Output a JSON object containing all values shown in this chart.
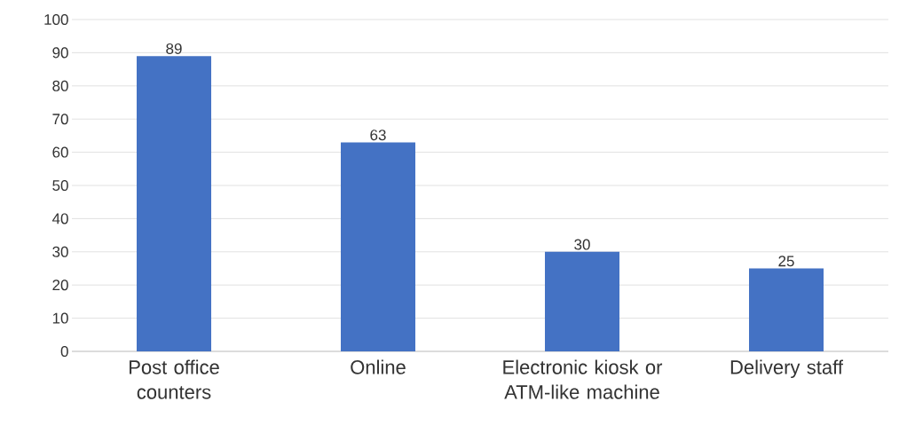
{
  "chart_data": {
    "type": "bar",
    "categories": [
      "Post office counters",
      "Online",
      "Electronic kiosk or ATM-like machine",
      "Delivery staff"
    ],
    "values": [
      89,
      63,
      30,
      25
    ],
    "color": "#4472c4",
    "ylim": [
      0,
      100
    ],
    "yticks": [
      0,
      10,
      20,
      30,
      40,
      50,
      60,
      70,
      80,
      90,
      100
    ],
    "grid": "y",
    "data_labels": true
  }
}
